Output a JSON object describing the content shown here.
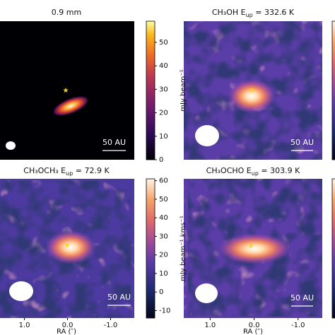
{
  "chart_data": [
    {
      "type": "image",
      "title": "0.9 mm",
      "colorbar": {
        "label": "mJy beam⁻¹",
        "ylim": [
          0,
          59
        ],
        "yticks": [
          0,
          10,
          20,
          30,
          40,
          50
        ]
      },
      "scale_bar": "50 AU"
    },
    {
      "type": "image",
      "title": "CH₃OH E",
      "title_sub": "up",
      "title_rest": " = 332.6 K",
      "scale_bar": "50 AU"
    },
    {
      "type": "image",
      "title": "CH₃OCH₃ E",
      "title_sub": "up",
      "title_rest": " = 72.9 K",
      "colorbar": {
        "label": "mJy beam⁻¹ kms⁻¹",
        "ylim": [
          -14,
          61
        ],
        "yticks": [
          -10,
          0,
          10,
          20,
          30,
          40,
          50,
          60
        ]
      },
      "xlabel": "RA (″)",
      "xlim": [
        1.6,
        -1.55
      ],
      "xticks": [
        {
          "value": 1,
          "label": "1.0"
        },
        {
          "value": 0,
          "label": "0.0"
        },
        {
          "value": -1,
          "label": "-1.0"
        }
      ],
      "scale_bar": "50 AU"
    },
    {
      "type": "image",
      "title": "CH₃OCHO E",
      "title_sub": "up",
      "title_rest": " = 303.9 K",
      "xlabel": "RA (″)",
      "xlim": [
        1.6,
        -1.55
      ],
      "xticks": [
        {
          "value": 1,
          "label": "1.0"
        },
        {
          "value": 0,
          "label": "0.0"
        },
        {
          "value": -1,
          "label": "-1.0"
        }
      ],
      "scale_bar": "50 AU"
    }
  ]
}
